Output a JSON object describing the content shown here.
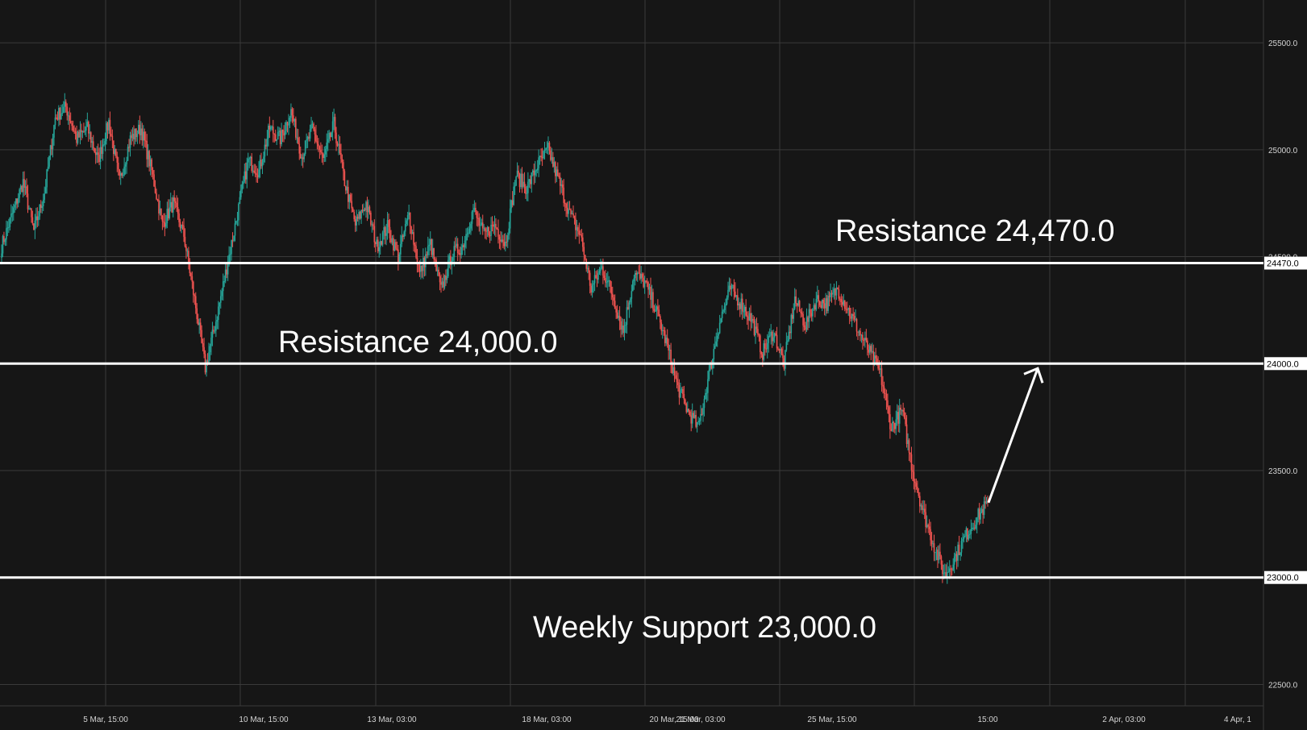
{
  "chart_data": {
    "type": "candlestick",
    "title": "",
    "xlabel": "",
    "ylabel": "",
    "ylim": [
      22400,
      25700
    ],
    "y_ticks": [
      "25500.0",
      "25000.0",
      "24500.0",
      "23500.0",
      "22500.0"
    ],
    "x_tick_labels": [
      "5 Mar, 15:00",
      "10 Mar, 15:00",
      "13 Mar, 03:00",
      "18 Mar, 03:00",
      "20 Mar, 15:00",
      "21 Mar, 03:00",
      "25 Mar, 15:00",
      "15:00",
      "2 Apr, 03:00",
      "4 Apr, 1"
    ],
    "grid": true,
    "colors": {
      "background": "#161616",
      "grid": "#3a3a3a",
      "up": "#26a69a",
      "down": "#ef5350",
      "levels": "#ffffff"
    },
    "series": [
      {
        "close_path": [
          24550,
          24700,
          24850,
          24620,
          24800,
          25150,
          25200,
          25050,
          25100,
          24950,
          25130,
          24850,
          25050,
          25100,
          24900,
          24650,
          24750,
          24600,
          24300,
          23980,
          24200,
          24450,
          24700,
          24950,
          24900,
          25100,
          25050,
          25180,
          24970,
          25100,
          24950,
          25120,
          24850,
          24650,
          24750,
          24550,
          24640,
          24500,
          24700,
          24420,
          24560,
          24340,
          24510,
          24550,
          24720,
          24600,
          24650,
          24560,
          24880,
          24820,
          24930,
          25000,
          24850,
          24700,
          24600,
          24350,
          24450,
          24320,
          24150,
          24420,
          24380,
          24260,
          24100,
          23900,
          23780,
          23700,
          23950,
          24200,
          24350,
          24280,
          24200,
          24050,
          24150,
          24000,
          24300,
          24180,
          24300,
          24280,
          24350,
          24250,
          24150,
          24050,
          23950,
          23700,
          23780,
          23500,
          23300,
          23150,
          23010,
          23100,
          23200,
          23280,
          23350
        ]
      }
    ],
    "levels": [
      {
        "value": 24470,
        "label": "24470.0"
      },
      {
        "value": 24000,
        "label": "24000.0"
      },
      {
        "value": 23000,
        "label": "23000.0"
      }
    ],
    "annotations": [
      {
        "text": "Resistance 24,470.0"
      },
      {
        "text": "Resistance 24,000.0"
      },
      {
        "text": "Weekly Support 23,000.0"
      }
    ],
    "arrow": {
      "from": 23350,
      "to": 24000
    }
  }
}
